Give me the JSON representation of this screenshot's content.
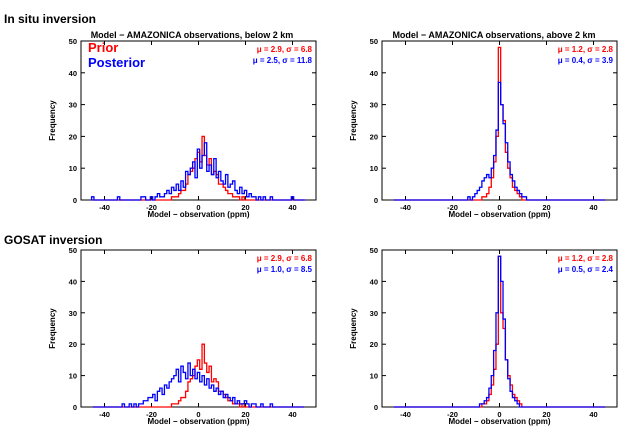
{
  "section_titles": [
    "In situ inversion",
    "GOSAT inversion"
  ],
  "colors": {
    "prior": "#ff0000",
    "posterior": "#0000ff",
    "axis": "#000000"
  },
  "legend": {
    "prior": "Prior",
    "posterior": "Posterior"
  },
  "chart_data": [
    {
      "type": "histogram",
      "title": "Model − AMAZONICA observations, below 2 km",
      "xlabel": "Model − observation (ppm)",
      "ylabel": "Frequency",
      "xlim": [
        -50,
        50
      ],
      "ylim": [
        0,
        50
      ],
      "xticks": [
        -40,
        -20,
        0,
        20,
        40
      ],
      "yticks": [
        0,
        10,
        20,
        30,
        40,
        50
      ],
      "legend_position": "top-left",
      "stats": [
        {
          "series": "prior",
          "text": "μ = 2.9, σ = 6.8"
        },
        {
          "series": "posterior",
          "text": "μ = 2.5, σ = 11.8"
        }
      ],
      "series": [
        {
          "name": "Prior",
          "key": "prior",
          "bin_centers": [
            -20,
            -19,
            -18,
            -17,
            -16,
            -15,
            -14,
            -13,
            -12,
            -11,
            -10,
            -9,
            -8,
            -7,
            -6,
            -5,
            -4,
            -3,
            -2,
            -1,
            0,
            1,
            2,
            3,
            4,
            5,
            6,
            7,
            8,
            9,
            10,
            11,
            12,
            13,
            14,
            15,
            16,
            17,
            18,
            19,
            20,
            21,
            22,
            23,
            24,
            25
          ],
          "counts": [
            0,
            0,
            0,
            0,
            0,
            0,
            0,
            0,
            0,
            1,
            1,
            1,
            2,
            3,
            3,
            5,
            8,
            9,
            10,
            13,
            15,
            12,
            20,
            14,
            11,
            13,
            8,
            9,
            8,
            5,
            5,
            4,
            3,
            2,
            2,
            1,
            1,
            1,
            0,
            1,
            0,
            0,
            0,
            0,
            0,
            0
          ]
        },
        {
          "name": "Posterior",
          "key": "posterior",
          "bin_centers": [
            -45,
            -44,
            -43,
            -42,
            -41,
            -40,
            -39,
            -38,
            -37,
            -36,
            -35,
            -34,
            -33,
            -32,
            -31,
            -30,
            -29,
            -28,
            -27,
            -26,
            -25,
            -24,
            -23,
            -22,
            -21,
            -20,
            -19,
            -18,
            -17,
            -16,
            -15,
            -14,
            -13,
            -12,
            -11,
            -10,
            -9,
            -8,
            -7,
            -6,
            -5,
            -4,
            -3,
            -2,
            -1,
            0,
            1,
            2,
            3,
            4,
            5,
            6,
            7,
            8,
            9,
            10,
            11,
            12,
            13,
            14,
            15,
            16,
            17,
            18,
            19,
            20,
            21,
            22,
            23,
            24,
            25,
            26,
            27,
            28,
            29,
            30,
            31,
            32,
            33,
            34,
            35,
            36,
            37,
            38,
            39,
            40,
            41,
            42,
            43,
            44,
            45
          ],
          "counts": [
            1,
            0,
            0,
            0,
            0,
            0,
            0,
            0,
            0,
            0,
            0,
            1,
            0,
            0,
            0,
            0,
            0,
            0,
            0,
            0,
            0,
            1,
            1,
            0,
            0,
            1,
            0,
            1,
            2,
            1,
            1,
            2,
            3,
            2,
            4,
            3,
            5,
            3,
            6,
            4,
            9,
            8,
            10,
            12,
            7,
            16,
            10,
            14,
            18,
            9,
            11,
            8,
            13,
            7,
            9,
            6,
            5,
            8,
            4,
            5,
            6,
            3,
            2,
            4,
            2,
            3,
            1,
            2,
            1,
            1,
            0,
            1,
            0,
            1,
            0,
            0,
            1,
            0,
            0,
            0,
            0,
            0,
            0,
            0,
            0,
            1,
            0,
            0,
            0,
            0,
            0
          ]
        }
      ]
    },
    {
      "type": "histogram",
      "title": "Model − AMAZONICA observations, above 2 km",
      "xlabel": "Model − observation (ppm)",
      "ylabel": "Frequency",
      "xlim": [
        -50,
        50
      ],
      "ylim": [
        0,
        50
      ],
      "xticks": [
        -40,
        -20,
        0,
        20,
        40
      ],
      "yticks": [
        0,
        10,
        20,
        30,
        40,
        50
      ],
      "stats": [
        {
          "series": "prior",
          "text": "μ = 1.2, σ = 2.8"
        },
        {
          "series": "posterior",
          "text": "μ = 0.4, σ = 3.9"
        }
      ],
      "series": [
        {
          "name": "Prior",
          "key": "prior",
          "bin_centers": [
            -8,
            -7,
            -6,
            -5,
            -4,
            -3,
            -2,
            -1,
            0,
            1,
            2,
            3,
            4,
            5,
            6,
            7,
            8,
            9,
            10
          ],
          "counts": [
            0,
            1,
            1,
            2,
            4,
            7,
            12,
            20,
            48,
            30,
            25,
            15,
            10,
            7,
            4,
            3,
            2,
            1,
            0
          ]
        },
        {
          "name": "Posterior",
          "key": "posterior",
          "bin_centers": [
            -14,
            -13,
            -12,
            -11,
            -10,
            -9,
            -8,
            -7,
            -6,
            -5,
            -4,
            -3,
            -2,
            -1,
            0,
            1,
            2,
            3,
            4,
            5,
            6,
            7,
            8,
            9,
            10,
            11,
            12
          ],
          "counts": [
            0,
            1,
            0,
            1,
            2,
            3,
            4,
            6,
            7,
            8,
            7,
            10,
            14,
            22,
            37,
            30,
            24,
            18,
            12,
            8,
            6,
            4,
            3,
            2,
            1,
            1,
            0
          ]
        }
      ]
    },
    {
      "type": "histogram",
      "title": "",
      "xlabel": "Model − observation (ppm)",
      "ylabel": "Frequency",
      "xlim": [
        -50,
        50
      ],
      "ylim": [
        0,
        50
      ],
      "xticks": [
        -40,
        -20,
        0,
        20,
        40
      ],
      "yticks": [
        0,
        10,
        20,
        30,
        40,
        50
      ],
      "stats": [
        {
          "series": "prior",
          "text": "μ = 2.9, σ = 6.8"
        },
        {
          "series": "posterior",
          "text": "μ = 1.0, σ = 8.5"
        }
      ],
      "series": [
        {
          "name": "Prior",
          "key": "prior",
          "bin_centers": [
            -20,
            -19,
            -18,
            -17,
            -16,
            -15,
            -14,
            -13,
            -12,
            -11,
            -10,
            -9,
            -8,
            -7,
            -6,
            -5,
            -4,
            -3,
            -2,
            -1,
            0,
            1,
            2,
            3,
            4,
            5,
            6,
            7,
            8,
            9,
            10,
            11,
            12,
            13,
            14,
            15,
            16,
            17,
            18,
            19,
            20,
            21,
            22,
            23,
            24,
            25
          ],
          "counts": [
            0,
            0,
            0,
            0,
            0,
            0,
            0,
            0,
            0,
            1,
            1,
            1,
            2,
            3,
            3,
            5,
            8,
            9,
            10,
            13,
            15,
            12,
            20,
            14,
            11,
            13,
            8,
            9,
            8,
            5,
            5,
            4,
            3,
            2,
            2,
            1,
            1,
            1,
            0,
            1,
            0,
            0,
            0,
            0,
            0,
            0
          ]
        },
        {
          "name": "Posterior",
          "key": "posterior",
          "bin_centers": [
            -33,
            -32,
            -31,
            -30,
            -29,
            -28,
            -27,
            -26,
            -25,
            -24,
            -23,
            -22,
            -21,
            -20,
            -19,
            -18,
            -17,
            -16,
            -15,
            -14,
            -13,
            -12,
            -11,
            -10,
            -9,
            -8,
            -7,
            -6,
            -5,
            -4,
            -3,
            -2,
            -1,
            0,
            1,
            2,
            3,
            4,
            5,
            6,
            7,
            8,
            9,
            10,
            11,
            12,
            13,
            14,
            15,
            16,
            17,
            18,
            19,
            20,
            21,
            22,
            23,
            24,
            25,
            26,
            27,
            28,
            29,
            30,
            31,
            32
          ],
          "counts": [
            0,
            1,
            0,
            0,
            1,
            0,
            1,
            0,
            1,
            1,
            2,
            2,
            3,
            3,
            4,
            2,
            5,
            6,
            4,
            7,
            6,
            8,
            9,
            10,
            12,
            8,
            13,
            11,
            9,
            14,
            10,
            12,
            9,
            11,
            8,
            10,
            7,
            9,
            6,
            7,
            5,
            6,
            4,
            5,
            3,
            4,
            3,
            2,
            3,
            1,
            2,
            1,
            1,
            2,
            1,
            0,
            1,
            1,
            0,
            0,
            1,
            0,
            0,
            0,
            1,
            0
          ]
        }
      ]
    },
    {
      "type": "histogram",
      "title": "",
      "xlabel": "Model − observation (ppm)",
      "ylabel": "Frequency",
      "xlim": [
        -50,
        50
      ],
      "ylim": [
        0,
        50
      ],
      "xticks": [
        -40,
        -20,
        0,
        20,
        40
      ],
      "yticks": [
        0,
        10,
        20,
        30,
        40,
        50
      ],
      "stats": [
        {
          "series": "prior",
          "text": "μ = 1.2, σ = 2.8"
        },
        {
          "series": "posterior",
          "text": "μ = 0.5, σ = 2.4"
        }
      ],
      "series": [
        {
          "name": "Prior",
          "key": "prior",
          "bin_centers": [
            -8,
            -7,
            -6,
            -5,
            -4,
            -3,
            -2,
            -1,
            0,
            1,
            2,
            3,
            4,
            5,
            6,
            7,
            8,
            9,
            10
          ],
          "counts": [
            0,
            1,
            1,
            2,
            4,
            7,
            12,
            20,
            48,
            30,
            25,
            15,
            10,
            7,
            4,
            3,
            2,
            1,
            0
          ]
        },
        {
          "name": "Posterior",
          "key": "posterior",
          "bin_centers": [
            -9,
            -8,
            -7,
            -6,
            -5,
            -4,
            -3,
            -2,
            -1,
            0,
            1,
            2,
            3,
            4,
            5,
            6,
            7,
            8,
            9
          ],
          "counts": [
            0,
            1,
            1,
            2,
            3,
            6,
            10,
            18,
            30,
            48,
            40,
            28,
            15,
            9,
            5,
            3,
            2,
            1,
            0
          ]
        }
      ]
    }
  ]
}
